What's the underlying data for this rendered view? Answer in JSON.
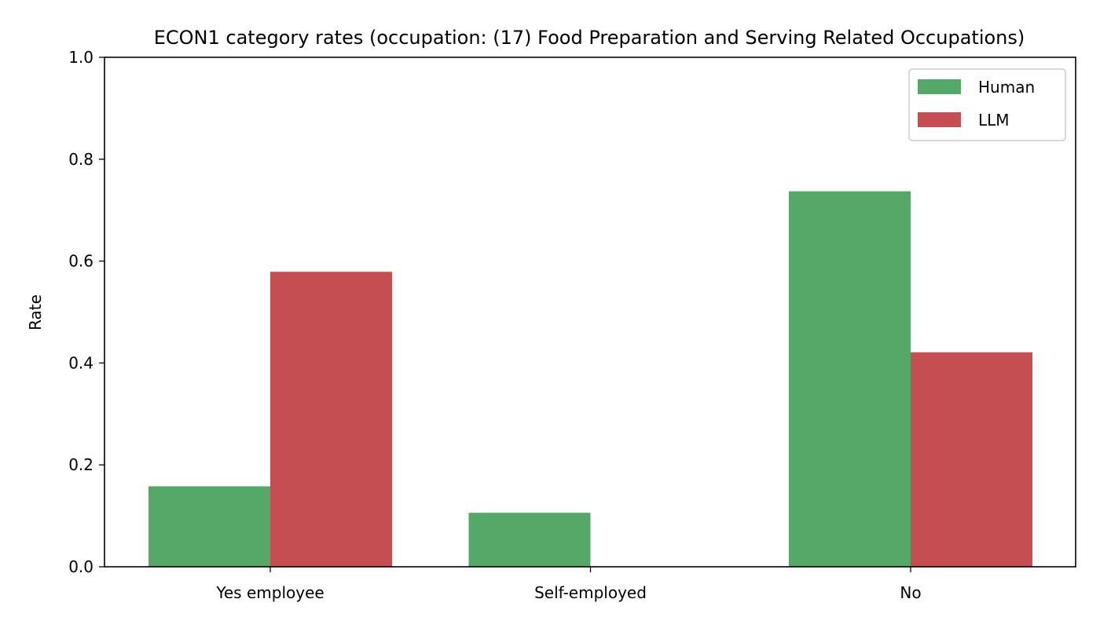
{
  "chart_data": {
    "type": "bar",
    "title": "ECON1 category rates (occupation: (17) Food Preparation and Serving Related Occupations)",
    "xlabel": "",
    "ylabel": "Rate",
    "categories": [
      "Yes employee",
      "Self-employed",
      "No"
    ],
    "series": [
      {
        "name": "Human",
        "color": "#55a868",
        "values": [
          0.158,
          0.106,
          0.737
        ]
      },
      {
        "name": "LLM",
        "color": "#c44e52",
        "values": [
          0.579,
          0.0,
          0.421
        ]
      }
    ],
    "ylim": [
      0,
      1.0
    ],
    "yticks": [
      "0.0",
      "0.2",
      "0.4",
      "0.6",
      "0.8",
      "1.0"
    ],
    "grid": false,
    "legend_position": "top-right"
  }
}
